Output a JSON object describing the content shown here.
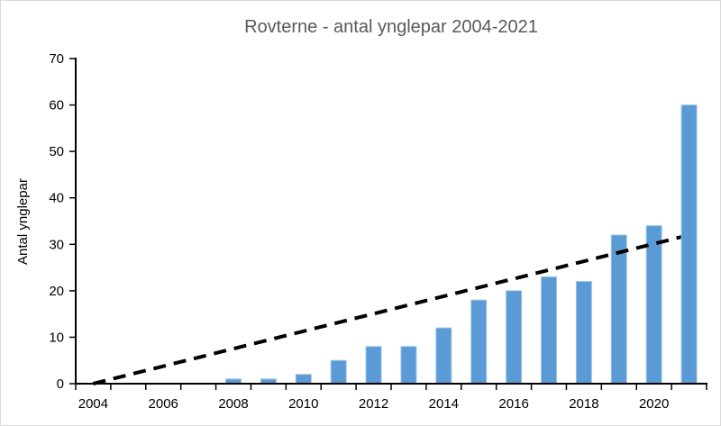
{
  "chart_data": {
    "type": "bar",
    "title": "Rovterne - antal ynglepar 2004-2021",
    "ylabel": "Antal ynglepar",
    "xlabel": "",
    "categories": [
      "2004",
      "2005",
      "2006",
      "2007",
      "2008",
      "2009",
      "2010",
      "2011",
      "2012",
      "2013",
      "2014",
      "2015",
      "2016",
      "2017",
      "2018",
      "2019",
      "2020",
      "2021"
    ],
    "values": [
      0,
      0,
      0,
      0,
      1,
      1,
      2,
      5,
      8,
      8,
      12,
      18,
      20,
      23,
      22,
      32,
      34,
      60
    ],
    "x_tick_labels": [
      "2004",
      "2006",
      "2008",
      "2010",
      "2012",
      "2014",
      "2016",
      "2018",
      "2020"
    ],
    "y_ticks": [
      0,
      10,
      20,
      30,
      40,
      50,
      60,
      70
    ],
    "ylim": [
      0,
      70
    ],
    "grid": false,
    "legend": "none",
    "trend_line": {
      "style": "dashed",
      "color": "#000000",
      "start": {
        "category": "2004",
        "value": 0
      },
      "end": {
        "category": "2021",
        "value": 32
      },
      "drawn_above_bars": true,
      "hidden_behind_last_bar": true
    },
    "colors": {
      "bar_fill": "#5B9BD5",
      "bar_border": "#9DC3E6",
      "title_text": "#595959",
      "axis_text": "#000000",
      "axis_line": "#000000",
      "chart_border": "#D9D9D9",
      "background": "#FFFFFF"
    }
  }
}
